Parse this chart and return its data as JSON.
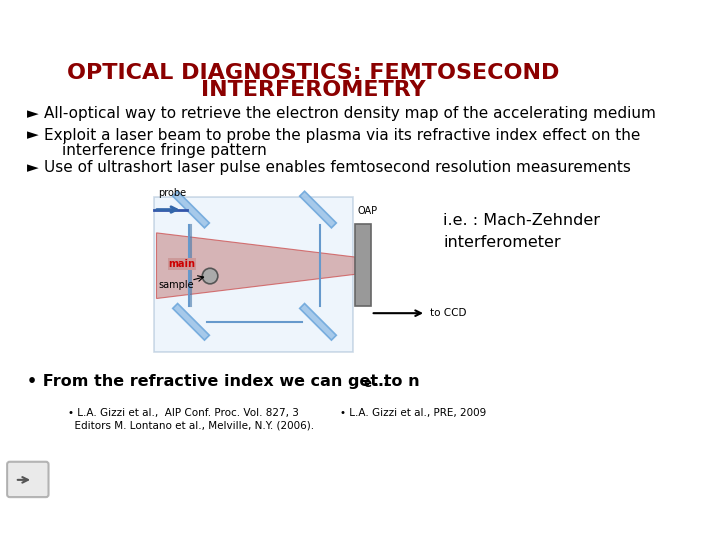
{
  "title_line1": "OPTICAL DIAGNOSTICS: FEMTOSECOND",
  "title_line2": "INTERFEROMETRY",
  "title_color": "#8B0000",
  "title_fontsize": 16,
  "bullet_fontsize": 11,
  "small_fontsize": 8,
  "bullets": [
    "All-optical way to retrieve the electron density map of the accelerating medium",
    "Exploit a laser beam to probe the plasma via its refractive index effect on the\n    interference fringe pattern",
    "Use of ultrashort laser pulse enables femtosecond resolution measurements"
  ],
  "ref1_line1": "• L.A. Gizzi et al.,  AIP Conf. Proc. Vol. 827, 3",
  "ref1_line2": "  Editors M. Lontano et al., Melville, N.Y. (2006).",
  "ref2": "• L.A. Gizzi et al., PRE, 2009",
  "bg_color": "#ffffff",
  "text_color": "#000000",
  "dark_red": "#8B0000",
  "beam_blue": "#6FA8DC",
  "beam_blue_fill": "#A4C2F4",
  "beam_main_fill": "#CC9999",
  "beam_main_line": "#CC4444",
  "mirror_blue": "#6FA8DC",
  "mirror_fill": "#9FC5E8",
  "oap_color": "#999999",
  "oap_edge": "#666666",
  "sample_color": "#AAAAAA"
}
